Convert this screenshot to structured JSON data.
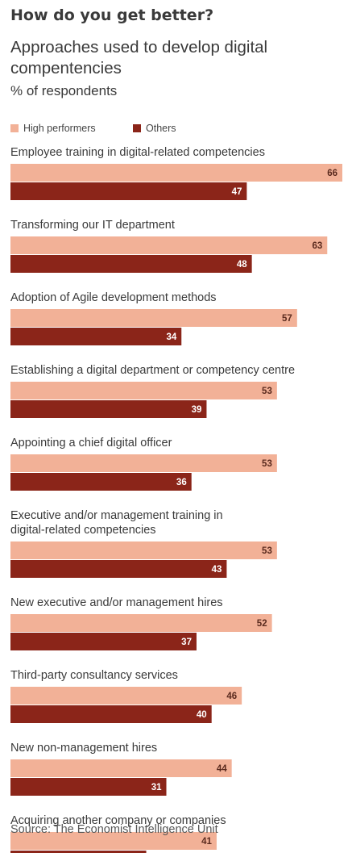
{
  "title": "How do you get better?",
  "subtitle": "Approaches used to develop digital compentencies",
  "unit": "% of respondents",
  "source": "Source: The Economist Intelligence Unit",
  "colors": {
    "high": "#f2b197",
    "others": "#8b2519",
    "label_light": "#5a2a1e",
    "label_dark": "#ffffff"
  },
  "chart_data": {
    "type": "bar",
    "orientation": "horizontal",
    "title": "How do you get better?",
    "subtitle": "Approaches used to develop digital compentencies",
    "unit": "% of respondents",
    "categories": [
      [
        "Employee training in digital-related competencies"
      ],
      [
        "Transforming our IT department"
      ],
      [
        "Adoption of Agile development methods"
      ],
      [
        "Establishing a digital department or competency centre"
      ],
      [
        "Appointing a chief digital officer"
      ],
      [
        "Executive and/or management training in",
        "digital-related competencies"
      ],
      [
        "New executive and/or management hires"
      ],
      [
        "Third-party consultancy services"
      ],
      [
        "New non-management hires"
      ],
      [
        "Acquiring another company or companies"
      ]
    ],
    "series": [
      {
        "name": "High performers",
        "values": [
          66,
          63,
          57,
          53,
          53,
          53,
          52,
          46,
          44,
          41
        ]
      },
      {
        "name": "Others",
        "values": [
          47,
          48,
          34,
          39,
          36,
          43,
          37,
          40,
          31,
          27
        ]
      }
    ],
    "xlim": [
      0,
      66
    ],
    "grid": false,
    "legend_position": "top-left",
    "data_labels": true
  }
}
